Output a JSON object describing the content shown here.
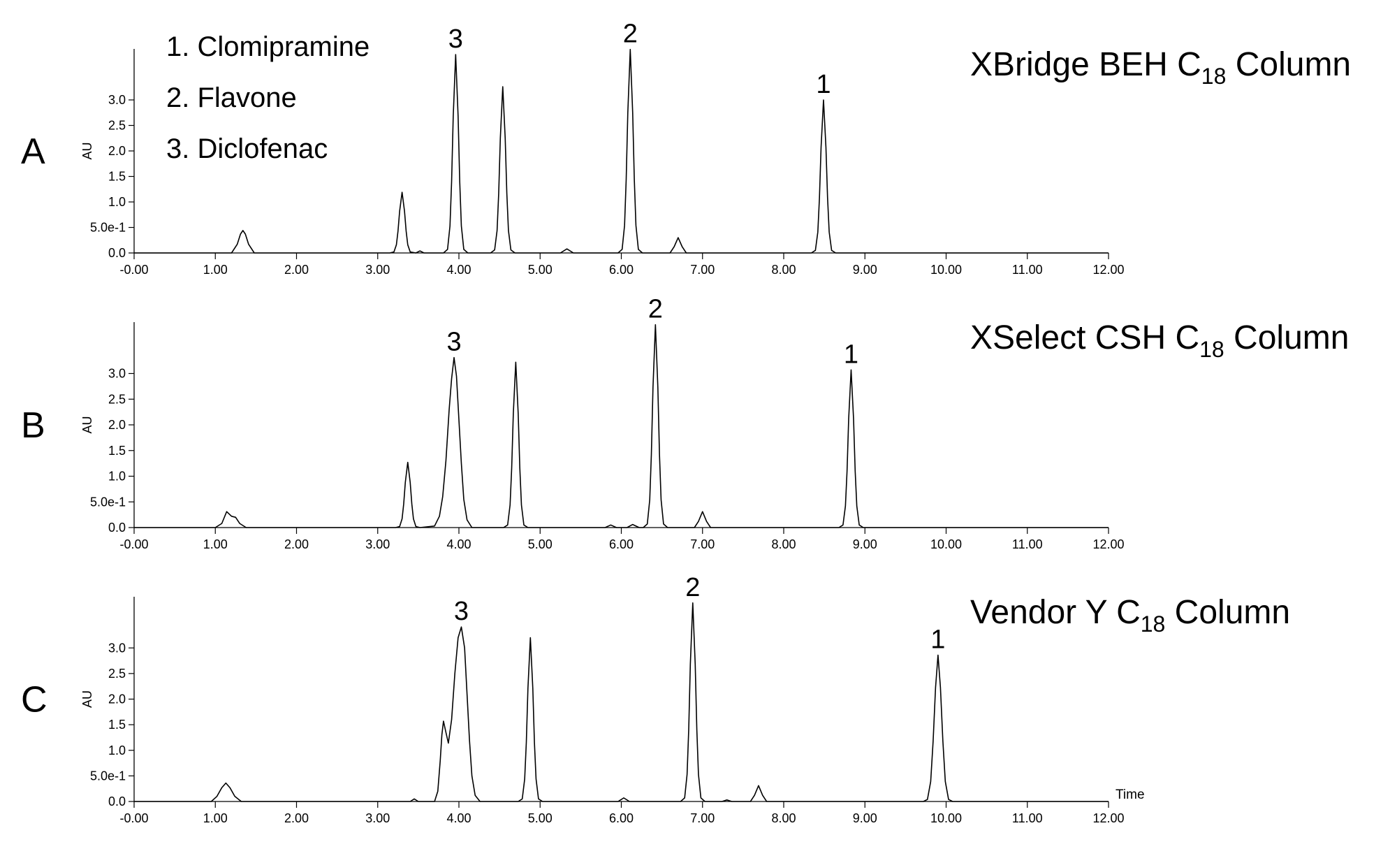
{
  "chart_data": [
    {
      "type": "line",
      "panel": "A",
      "title": [
        "XBridge BEH C",
        "18",
        " Column"
      ],
      "y_label": "AU",
      "compounds": [
        "1. Clomipramine",
        "2. Flavone",
        "3. Diclofenac"
      ],
      "color": "#000000",
      "xlim": [
        0,
        12
      ],
      "ylim": [
        0,
        4.0
      ],
      "xticks": [
        {
          "value": 0,
          "label": "-0.00"
        },
        {
          "value": 1,
          "label": "1.00"
        },
        {
          "value": 2,
          "label": "2.00"
        },
        {
          "value": 3,
          "label": "3.00"
        },
        {
          "value": 4,
          "label": "4.00"
        },
        {
          "value": 5,
          "label": "5.00"
        },
        {
          "value": 6,
          "label": "6.00"
        },
        {
          "value": 7,
          "label": "7.00"
        },
        {
          "value": 8,
          "label": "8.00"
        },
        {
          "value": 9,
          "label": "9.00"
        },
        {
          "value": 10,
          "label": "10.00"
        },
        {
          "value": 11,
          "label": "11.00"
        },
        {
          "value": 12,
          "label": "12.00"
        }
      ],
      "yticks": [
        {
          "value": 0,
          "label": "0.0"
        },
        {
          "value": 0.5,
          "label": "5.0e-1"
        },
        {
          "value": 1,
          "label": "1.0"
        },
        1.5,
        {
          "value": 2,
          "label": "2.0"
        },
        2.5,
        {
          "value": 3,
          "label": "3.0"
        }
      ],
      "peak_labels": [
        {
          "label": "3",
          "x": 3.96,
          "y": 3.89
        },
        {
          "label": "2",
          "x": 6.11,
          "y": 3.99
        },
        {
          "label": "1",
          "x": 8.49,
          "y": 3.0
        }
      ],
      "x": [
        0,
        1.2,
        1.27,
        1.31,
        1.34,
        1.37,
        1.41,
        1.48,
        3.15,
        3.2,
        3.23,
        3.25,
        3.27,
        3.3,
        3.33,
        3.35,
        3.37,
        3.4,
        3.47,
        3.52,
        3.57,
        3.81,
        3.86,
        3.89,
        3.91,
        3.93,
        3.96,
        3.99,
        4.01,
        4.03,
        4.06,
        4.11,
        4.39,
        4.44,
        4.47,
        4.49,
        4.51,
        4.54,
        4.57,
        4.59,
        4.61,
        4.64,
        4.69,
        5.25,
        5.33,
        5.41,
        5.96,
        6.01,
        6.04,
        6.06,
        6.08,
        6.11,
        6.14,
        6.16,
        6.18,
        6.21,
        6.26,
        6.6,
        6.65,
        6.7,
        6.75,
        6.8,
        8.34,
        8.39,
        8.42,
        8.44,
        8.46,
        8.49,
        8.52,
        8.54,
        8.56,
        8.59,
        8.64,
        12
      ],
      "values": [
        0,
        0,
        0.17,
        0.37,
        0.44,
        0.37,
        0.17,
        0,
        0,
        0.02,
        0.16,
        0.43,
        0.82,
        1.19,
        0.82,
        0.43,
        0.16,
        0.02,
        0,
        0.04,
        0,
        0,
        0.07,
        0.53,
        1.4,
        2.68,
        3.89,
        2.68,
        1.4,
        0.53,
        0.07,
        0,
        0,
        0.06,
        0.44,
        1.17,
        2.25,
        3.26,
        2.25,
        1.17,
        0.44,
        0.06,
        0,
        0,
        0.08,
        0,
        0,
        0.07,
        0.54,
        1.44,
        2.75,
        3.99,
        2.75,
        1.44,
        0.54,
        0.07,
        0,
        0,
        0.12,
        0.3,
        0.12,
        0,
        0,
        0.05,
        0.41,
        1.08,
        2.07,
        3.0,
        2.07,
        1.08,
        0.41,
        0.05,
        0,
        0
      ]
    },
    {
      "type": "line",
      "panel": "B",
      "title": [
        "XSelect CSH C",
        "18",
        " Column"
      ],
      "y_label": "AU",
      "color": "#000000",
      "xlim": [
        0,
        12
      ],
      "ylim": [
        0,
        4.0
      ],
      "xticks": [
        {
          "value": 0,
          "label": "-0.00"
        },
        {
          "value": 1,
          "label": "1.00"
        },
        {
          "value": 2,
          "label": "2.00"
        },
        {
          "value": 3,
          "label": "3.00"
        },
        {
          "value": 4,
          "label": "4.00"
        },
        {
          "value": 5,
          "label": "5.00"
        },
        {
          "value": 6,
          "label": "6.00"
        },
        {
          "value": 7,
          "label": "7.00"
        },
        {
          "value": 8,
          "label": "8.00"
        },
        {
          "value": 9,
          "label": "9.00"
        },
        {
          "value": 10,
          "label": "10.00"
        },
        {
          "value": 11,
          "label": "11.00"
        },
        {
          "value": 12,
          "label": "12.00"
        }
      ],
      "yticks": [
        {
          "value": 0,
          "label": "0.0"
        },
        {
          "value": 0.5,
          "label": "5.0e-1"
        },
        {
          "value": 1,
          "label": "1.0"
        },
        1.5,
        {
          "value": 2,
          "label": "2.0"
        },
        2.5,
        {
          "value": 3,
          "label": "3.0"
        }
      ],
      "peak_labels": [
        {
          "label": "3",
          "x": 3.94,
          "y": 3.31
        },
        {
          "label": "2",
          "x": 6.42,
          "y": 3.95
        },
        {
          "label": "1",
          "x": 8.83,
          "y": 3.07
        }
      ],
      "x": [
        0,
        1.0,
        1.08,
        1.14,
        1.2,
        1.25,
        1.3,
        1.38,
        3.22,
        3.27,
        3.3,
        3.32,
        3.34,
        3.37,
        3.4,
        3.42,
        3.44,
        3.47,
        3.52,
        3.7,
        3.76,
        3.8,
        3.84,
        3.88,
        3.91,
        3.94,
        3.97,
        4.0,
        4.03,
        4.06,
        4.1,
        4.16,
        4.55,
        4.6,
        4.63,
        4.65,
        4.67,
        4.7,
        4.73,
        4.75,
        4.77,
        4.8,
        4.85,
        5.8,
        5.87,
        5.94,
        6.07,
        6.14,
        6.22,
        6.27,
        6.32,
        6.35,
        6.37,
        6.39,
        6.42,
        6.45,
        6.47,
        6.49,
        6.52,
        6.57,
        6.9,
        6.95,
        7.0,
        7.05,
        7.1,
        8.68,
        8.73,
        8.76,
        8.78,
        8.8,
        8.83,
        8.86,
        8.88,
        8.9,
        8.93,
        8.98,
        12
      ],
      "values": [
        0,
        0,
        0.08,
        0.31,
        0.22,
        0.2,
        0.08,
        0,
        0,
        0.02,
        0.17,
        0.46,
        0.88,
        1.27,
        0.88,
        0.46,
        0.17,
        0.02,
        0,
        0.03,
        0.22,
        0.6,
        1.3,
        2.3,
        2.9,
        3.31,
        2.95,
        2.1,
        1.25,
        0.55,
        0.15,
        0,
        0,
        0.05,
        0.44,
        1.16,
        2.22,
        3.22,
        2.22,
        1.16,
        0.44,
        0.05,
        0,
        0,
        0.05,
        0,
        0,
        0.06,
        0,
        0,
        0.07,
        0.54,
        1.42,
        2.73,
        3.95,
        2.73,
        1.42,
        0.54,
        0.07,
        0,
        0,
        0.12,
        0.31,
        0.12,
        0,
        0,
        0.05,
        0.42,
        1.1,
        2.12,
        3.07,
        2.12,
        1.1,
        0.42,
        0.05,
        0,
        0
      ]
    },
    {
      "type": "line",
      "panel": "C",
      "title": [
        "Vendor Y C",
        "18",
        " Column"
      ],
      "y_label": "AU",
      "x_label": "Time",
      "color": "#000000",
      "xlim": [
        0,
        12
      ],
      "ylim": [
        0,
        4.0
      ],
      "xticks": [
        {
          "value": 0,
          "label": "-0.00"
        },
        {
          "value": 1,
          "label": "1.00"
        },
        {
          "value": 2,
          "label": "2.00"
        },
        {
          "value": 3,
          "label": "3.00"
        },
        {
          "value": 4,
          "label": "4.00"
        },
        {
          "value": 5,
          "label": "5.00"
        },
        {
          "value": 6,
          "label": "6.00"
        },
        {
          "value": 7,
          "label": "7.00"
        },
        {
          "value": 8,
          "label": "8.00"
        },
        {
          "value": 9,
          "label": "9.00"
        },
        {
          "value": 10,
          "label": "10.00"
        },
        {
          "value": 11,
          "label": "11.00"
        },
        {
          "value": 12,
          "label": "12.00"
        }
      ],
      "yticks": [
        {
          "value": 0,
          "label": "0.0"
        },
        {
          "value": 0.5,
          "label": "5.0e-1"
        },
        {
          "value": 1,
          "label": "1.0"
        },
        1.5,
        {
          "value": 2,
          "label": "2.0"
        },
        2.5,
        {
          "value": 3,
          "label": "3.0"
        }
      ],
      "peak_labels": [
        {
          "label": "3",
          "x": 4.03,
          "y": 3.41
        },
        {
          "label": "2",
          "x": 6.88,
          "y": 3.88
        },
        {
          "label": "1",
          "x": 9.9,
          "y": 2.86
        }
      ],
      "x": [
        0,
        0.95,
        1.02,
        1.08,
        1.13,
        1.18,
        1.24,
        1.32,
        3.4,
        3.45,
        3.5,
        3.7,
        3.74,
        3.77,
        3.79,
        3.81,
        3.84,
        3.87,
        3.91,
        3.95,
        3.99,
        4.03,
        4.07,
        4.1,
        4.13,
        4.16,
        4.2,
        4.26,
        4.73,
        4.78,
        4.81,
        4.83,
        4.85,
        4.88,
        4.91,
        4.93,
        4.95,
        4.98,
        5.03,
        5.96,
        6.03,
        6.1,
        6.73,
        6.78,
        6.81,
        6.83,
        6.85,
        6.88,
        6.91,
        6.93,
        6.95,
        6.98,
        7.03,
        7.24,
        7.3,
        7.36,
        7.59,
        7.64,
        7.69,
        7.74,
        7.79,
        9.72,
        9.77,
        9.81,
        9.84,
        9.87,
        9.9,
        9.93,
        9.96,
        9.99,
        10.03,
        10.08,
        12
      ],
      "values": [
        0,
        0,
        0.1,
        0.27,
        0.36,
        0.27,
        0.1,
        0,
        0,
        0.05,
        0,
        0,
        0.2,
        0.8,
        1.3,
        1.57,
        1.35,
        1.14,
        1.6,
        2.5,
        3.2,
        3.41,
        3.0,
        2.1,
        1.2,
        0.5,
        0.12,
        0,
        0,
        0.05,
        0.44,
        1.15,
        2.21,
        3.2,
        2.21,
        1.15,
        0.44,
        0.05,
        0,
        0,
        0.07,
        0,
        0,
        0.07,
        0.53,
        1.4,
        2.68,
        3.88,
        2.68,
        1.4,
        0.53,
        0.07,
        0,
        0,
        0.03,
        0,
        0,
        0.12,
        0.31,
        0.12,
        0,
        0,
        0.04,
        0.39,
        1.18,
        2.23,
        2.86,
        2.23,
        1.18,
        0.39,
        0.04,
        0,
        0
      ]
    }
  ]
}
